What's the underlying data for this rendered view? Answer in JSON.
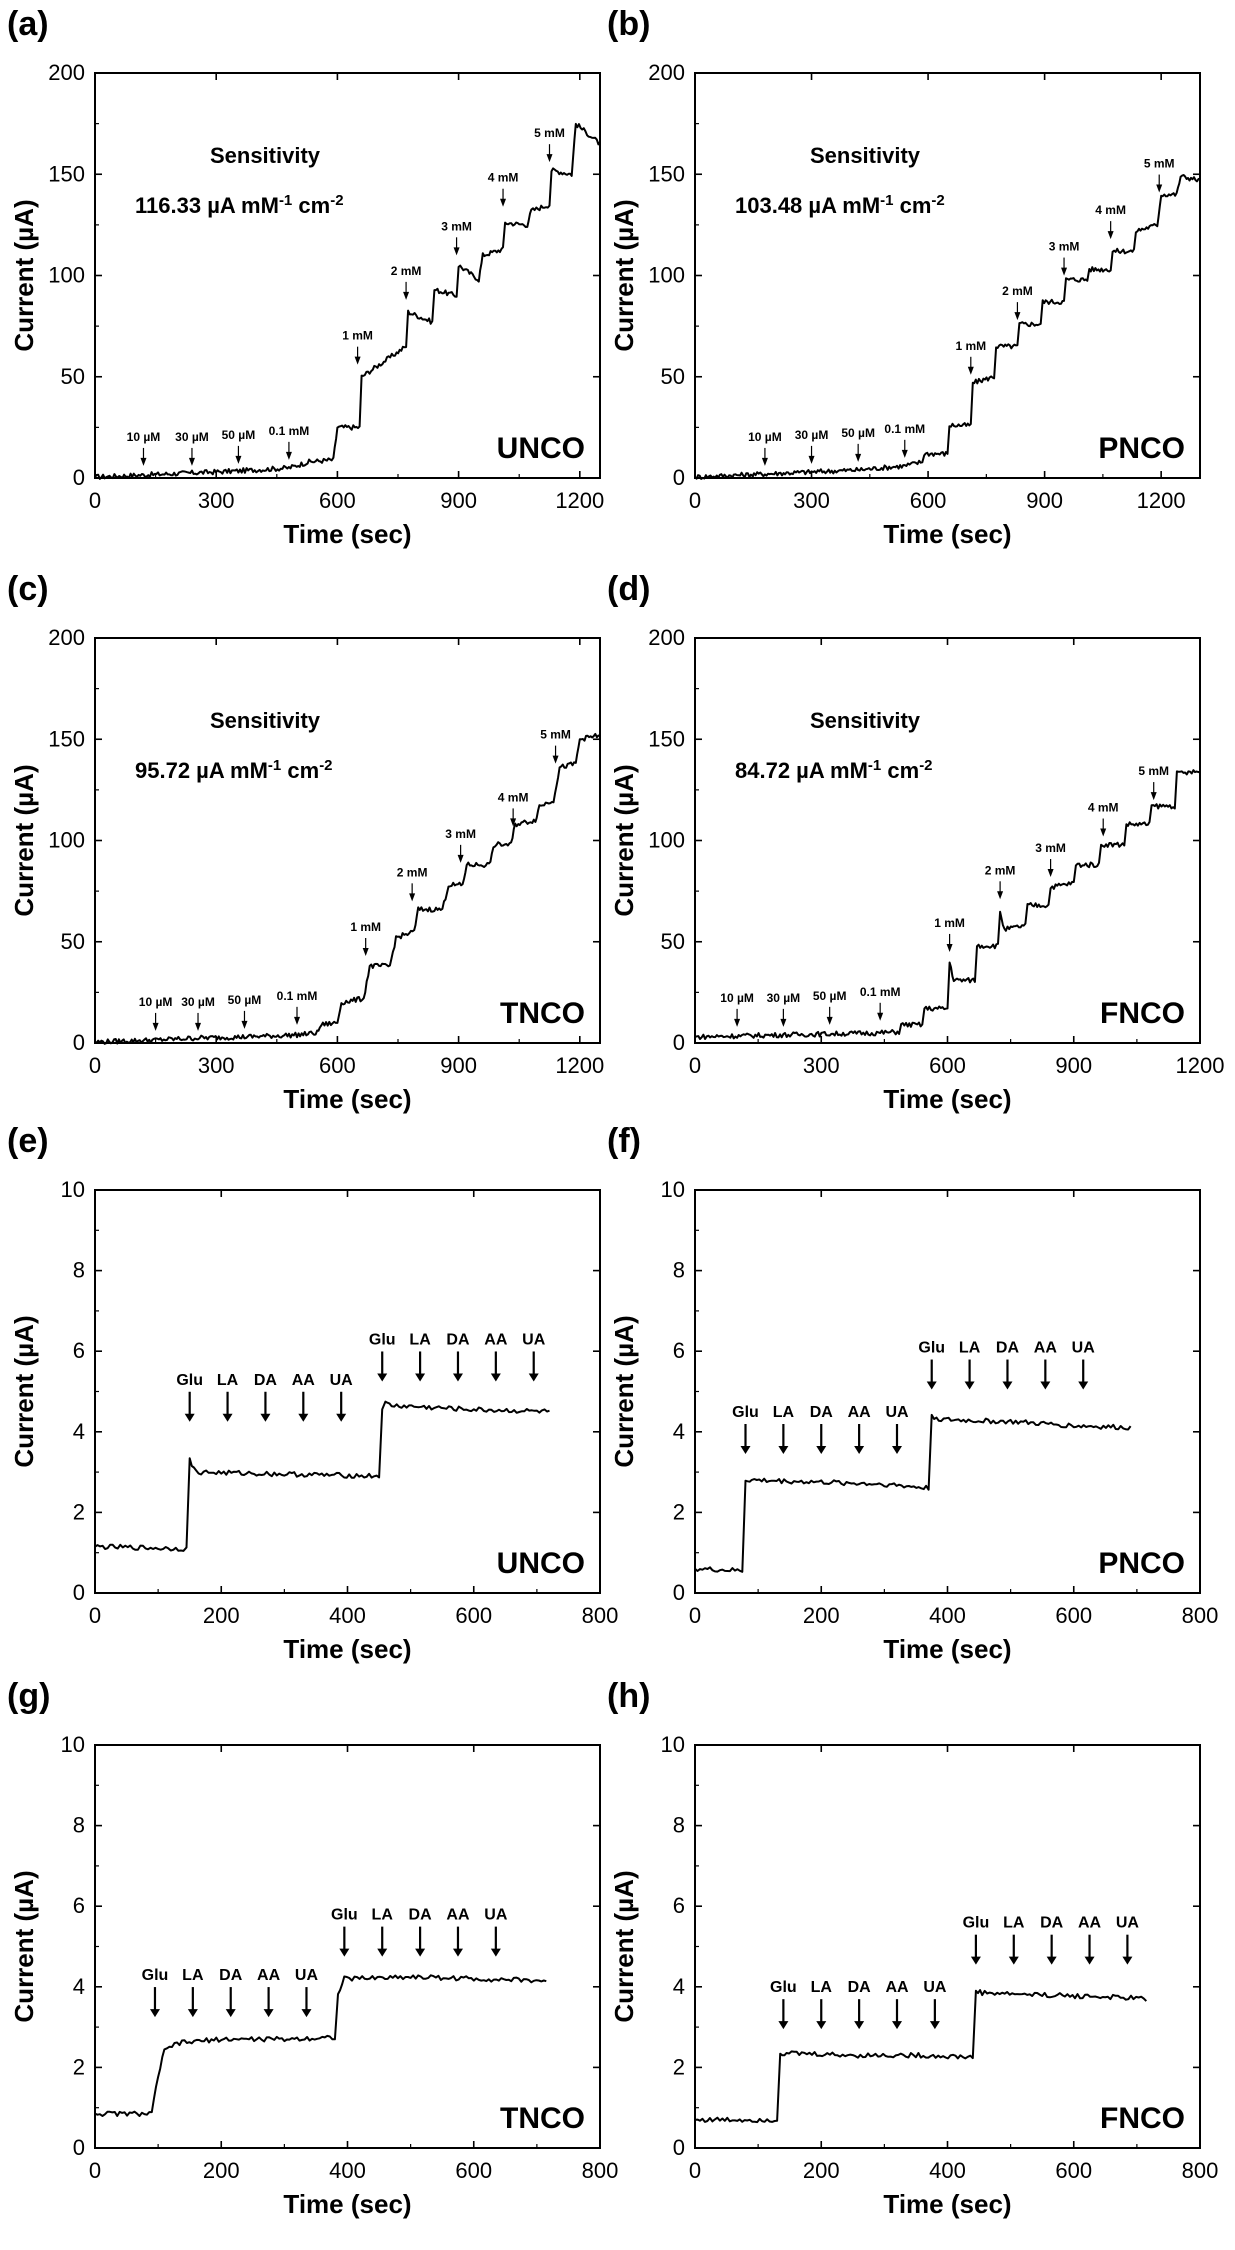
{
  "chart_data": [
    {
      "panel": "(a)",
      "type": "line",
      "material": "UNCO",
      "xlabel": "Time (sec)",
      "ylabel": "Current (µA)",
      "xlim": [
        0,
        1250
      ],
      "ylim": [
        0,
        200
      ],
      "xticks": [
        0,
        300,
        600,
        900,
        1200
      ],
      "yticks": [
        0,
        50,
        100,
        150,
        200
      ],
      "sensitivity_label": "Sensitivity",
      "sensitivity_value": "116.33 µA mM",
      "sensitivity_exp1": "-1",
      "sensitivity_unit2": " cm",
      "sensitivity_exp2": "-2",
      "annotations": [
        {
          "text": "10 µM",
          "x": 120,
          "y": 3
        },
        {
          "text": "30 µM",
          "x": 240,
          "y": 3
        },
        {
          "text": "50 µM",
          "x": 355,
          "y": 4
        },
        {
          "text": "0.1 mM",
          "x": 480,
          "y": 6
        },
        {
          "text": "1 mM",
          "x": 650,
          "y": 53
        },
        {
          "text": "2 mM",
          "x": 770,
          "y": 85
        },
        {
          "text": "3 mM",
          "x": 895,
          "y": 107
        },
        {
          "text": "4 mM",
          "x": 1010,
          "y": 131
        },
        {
          "text": "5 mM",
          "x": 1125,
          "y": 153
        }
      ],
      "series": [
        {
          "x": [
            0,
            120,
            240,
            355,
            480,
            530,
            590,
            600,
            655,
            660,
            770,
            775,
            835,
            840,
            895,
            900,
            950,
            960,
            1010,
            1015,
            1070,
            1080,
            1125,
            1130,
            1180,
            1190,
            1250
          ],
          "y": [
            0.5,
            1.5,
            2.5,
            3.5,
            5,
            8,
            9,
            25,
            25,
            50,
            65,
            82,
            77,
            93,
            90,
            105,
            98,
            110,
            113,
            126,
            125,
            132,
            135,
            152,
            150,
            175,
            165
          ]
        }
      ]
    },
    {
      "panel": "(b)",
      "type": "line",
      "material": "PNCO",
      "xlabel": "Time (sec)",
      "ylabel": "Current (µA)",
      "xlim": [
        0,
        1300
      ],
      "ylim": [
        0,
        200
      ],
      "xticks": [
        0,
        300,
        600,
        900,
        1200
      ],
      "yticks": [
        0,
        50,
        100,
        150,
        200
      ],
      "sensitivity_label": "Sensitivity",
      "sensitivity_value": "103.48 µA mM",
      "sensitivity_exp1": "-1",
      "sensitivity_unit2": " cm",
      "sensitivity_exp2": "-2",
      "annotations": [
        {
          "text": "10 µM",
          "x": 180,
          "y": 3
        },
        {
          "text": "30 µM",
          "x": 300,
          "y": 4
        },
        {
          "text": "50 µM",
          "x": 420,
          "y": 5
        },
        {
          "text": "0.1 mM",
          "x": 540,
          "y": 7
        },
        {
          "text": "1 mM",
          "x": 710,
          "y": 48
        },
        {
          "text": "2 mM",
          "x": 830,
          "y": 75
        },
        {
          "text": "3 mM",
          "x": 950,
          "y": 97
        },
        {
          "text": "4 mM",
          "x": 1070,
          "y": 115
        },
        {
          "text": "5 mM",
          "x": 1195,
          "y": 138
        }
      ],
      "series": [
        {
          "x": [
            0,
            180,
            300,
            420,
            540,
            585,
            590,
            650,
            655,
            710,
            715,
            770,
            775,
            830,
            835,
            890,
            895,
            950,
            955,
            1010,
            1015,
            1070,
            1075,
            1130,
            1135,
            1190,
            1200,
            1240,
            1250,
            1300
          ],
          "y": [
            0.5,
            2,
            3,
            4,
            6,
            8,
            12,
            12,
            26,
            26,
            47,
            50,
            65,
            65,
            76,
            76,
            87,
            87,
            98,
            98,
            103,
            103,
            112,
            112,
            122,
            125,
            140,
            140,
            149,
            147
          ]
        }
      ]
    },
    {
      "panel": "(c)",
      "type": "line",
      "material": "TNCO",
      "xlabel": "Time (sec)",
      "ylabel": "Current (µA)",
      "xlim": [
        0,
        1250
      ],
      "ylim": [
        0,
        200
      ],
      "xticks": [
        0,
        300,
        600,
        900,
        1200
      ],
      "yticks": [
        0,
        50,
        100,
        150,
        200
      ],
      "sensitivity_label": "Sensitivity",
      "sensitivity_value": "95.72 µA mM",
      "sensitivity_exp1": "-1",
      "sensitivity_unit2": " cm",
      "sensitivity_exp2": "-2",
      "annotations": [
        {
          "text": "10 µM",
          "x": 150,
          "y": 3
        },
        {
          "text": "30 µM",
          "x": 255,
          "y": 3
        },
        {
          "text": "50 µM",
          "x": 370,
          "y": 4
        },
        {
          "text": "0.1 mM",
          "x": 500,
          "y": 6
        },
        {
          "text": "1 mM",
          "x": 670,
          "y": 40
        },
        {
          "text": "2 mM",
          "x": 785,
          "y": 67
        },
        {
          "text": "3 mM",
          "x": 905,
          "y": 86
        },
        {
          "text": "4 mM",
          "x": 1035,
          "y": 104
        },
        {
          "text": "5 mM",
          "x": 1140,
          "y": 135
        }
      ],
      "series": [
        {
          "x": [
            0,
            150,
            255,
            370,
            500,
            550,
            560,
            600,
            610,
            665,
            680,
            730,
            745,
            790,
            800,
            860,
            875,
            910,
            920,
            975,
            990,
            1030,
            1040,
            1090,
            1100,
            1135,
            1150,
            1190,
            1200,
            1250
          ],
          "y": [
            0.5,
            1.5,
            2.5,
            3,
            4,
            5,
            9,
            10,
            20,
            22,
            38,
            38,
            52,
            55,
            66,
            66,
            78,
            78,
            88,
            88,
            98,
            98,
            108,
            110,
            117,
            120,
            136,
            138,
            150,
            152
          ]
        }
      ]
    },
    {
      "panel": "(d)",
      "type": "line",
      "material": "FNCO",
      "xlabel": "Time (sec)",
      "ylabel": "Current (µA)",
      "xlim": [
        0,
        1200
      ],
      "ylim": [
        0,
        200
      ],
      "xticks": [
        0,
        300,
        600,
        900,
        1200
      ],
      "yticks": [
        0,
        50,
        100,
        150,
        200
      ],
      "sensitivity_label": "Sensitivity",
      "sensitivity_value": "84.72 µA mM",
      "sensitivity_exp1": "-1",
      "sensitivity_unit2": " cm",
      "sensitivity_exp2": "-2",
      "annotations": [
        {
          "text": "10 µM",
          "x": 100,
          "y": 5
        },
        {
          "text": "30 µM",
          "x": 210,
          "y": 5
        },
        {
          "text": "50 µM",
          "x": 320,
          "y": 6
        },
        {
          "text": "0.1 mM",
          "x": 440,
          "y": 8
        },
        {
          "text": "1 mM",
          "x": 605,
          "y": 42
        },
        {
          "text": "2 mM",
          "x": 725,
          "y": 68
        },
        {
          "text": "3 mM",
          "x": 845,
          "y": 79
        },
        {
          "text": "4 mM",
          "x": 970,
          "y": 99
        },
        {
          "text": "5 mM",
          "x": 1090,
          "y": 117
        }
      ],
      "series": [
        {
          "x": [
            0,
            100,
            210,
            320,
            440,
            485,
            490,
            540,
            545,
            600,
            605,
            615,
            665,
            670,
            720,
            725,
            735,
            785,
            790,
            840,
            845,
            900,
            905,
            960,
            965,
            1020,
            1025,
            1080,
            1085,
            1140,
            1145,
            1200
          ],
          "y": [
            3,
            3.5,
            4,
            4.5,
            5,
            5.5,
            9,
            9,
            17,
            17,
            40,
            31,
            31,
            48,
            48,
            65,
            56,
            58,
            68,
            68,
            77,
            79,
            88,
            88,
            98,
            98,
            108,
            108,
            117,
            117,
            133,
            134
          ]
        }
      ]
    },
    {
      "panel": "(e)",
      "type": "line",
      "material": "UNCO",
      "xlabel": "Time (sec)",
      "ylabel": "Current (µA)",
      "xlim": [
        0,
        800
      ],
      "ylim": [
        0,
        10
      ],
      "xticks": [
        0,
        200,
        400,
        600,
        800
      ],
      "yticks": [
        0,
        2,
        4,
        6,
        8,
        10
      ],
      "annotations": [
        {
          "text": "Glu",
          "x": 150,
          "y": 4.1
        },
        {
          "text": "LA",
          "x": 210,
          "y": 4.1
        },
        {
          "text": "DA",
          "x": 270,
          "y": 4.1
        },
        {
          "text": "AA",
          "x": 330,
          "y": 4.1
        },
        {
          "text": "UA",
          "x": 390,
          "y": 4.1
        },
        {
          "text": "Glu",
          "x": 455,
          "y": 5.1
        },
        {
          "text": "LA",
          "x": 515,
          "y": 5.1
        },
        {
          "text": "DA",
          "x": 575,
          "y": 5.1
        },
        {
          "text": "AA",
          "x": 635,
          "y": 5.1
        },
        {
          "text": "UA",
          "x": 695,
          "y": 5.1
        }
      ],
      "series": [
        {
          "x": [
            0,
            140,
            145,
            150,
            160,
            300,
            450,
            455,
            460,
            470,
            600,
            720
          ],
          "y": [
            1.15,
            1.1,
            1.1,
            3.3,
            3.0,
            2.95,
            2.9,
            4.6,
            4.7,
            4.65,
            4.55,
            4.5
          ]
        }
      ]
    },
    {
      "panel": "(f)",
      "type": "line",
      "material": "PNCO",
      "xlabel": "Time (sec)",
      "ylabel": "Current (µA)",
      "xlim": [
        0,
        800
      ],
      "ylim": [
        0,
        10
      ],
      "xticks": [
        0,
        200,
        400,
        600,
        800
      ],
      "yticks": [
        0,
        2,
        4,
        6,
        8,
        10
      ],
      "annotations": [
        {
          "text": "Glu",
          "x": 80,
          "y": 3.3
        },
        {
          "text": "LA",
          "x": 140,
          "y": 3.3
        },
        {
          "text": "DA",
          "x": 200,
          "y": 3.3
        },
        {
          "text": "AA",
          "x": 260,
          "y": 3.3
        },
        {
          "text": "UA",
          "x": 320,
          "y": 3.3
        },
        {
          "text": "Glu",
          "x": 375,
          "y": 4.9
        },
        {
          "text": "LA",
          "x": 435,
          "y": 4.9
        },
        {
          "text": "DA",
          "x": 495,
          "y": 4.9
        },
        {
          "text": "AA",
          "x": 555,
          "y": 4.9
        },
        {
          "text": "UA",
          "x": 615,
          "y": 4.9
        }
      ],
      "series": [
        {
          "x": [
            0,
            75,
            80,
            90,
            200,
            300,
            370,
            375,
            390,
            500,
            600,
            690
          ],
          "y": [
            0.6,
            0.55,
            2.8,
            2.8,
            2.75,
            2.7,
            2.6,
            4.4,
            4.3,
            4.25,
            4.15,
            4.1
          ]
        }
      ]
    },
    {
      "panel": "(g)",
      "type": "line",
      "material": "TNCO",
      "xlabel": "Time (sec)",
      "ylabel": "Current (µA)",
      "xlim": [
        0,
        800
      ],
      "ylim": [
        0,
        10
      ],
      "xticks": [
        0,
        200,
        400,
        600,
        800
      ],
      "yticks": [
        0,
        2,
        4,
        6,
        8,
        10
      ],
      "annotations": [
        {
          "text": "Glu",
          "x": 95,
          "y": 3.1
        },
        {
          "text": "LA",
          "x": 155,
          "y": 3.1
        },
        {
          "text": "DA",
          "x": 215,
          "y": 3.1
        },
        {
          "text": "AA",
          "x": 275,
          "y": 3.1
        },
        {
          "text": "UA",
          "x": 335,
          "y": 3.1
        },
        {
          "text": "Glu",
          "x": 395,
          "y": 4.6
        },
        {
          "text": "LA",
          "x": 455,
          "y": 4.6
        },
        {
          "text": "DA",
          "x": 515,
          "y": 4.6
        },
        {
          "text": "AA",
          "x": 575,
          "y": 4.6
        },
        {
          "text": "UA",
          "x": 635,
          "y": 4.6
        }
      ],
      "series": [
        {
          "x": [
            0,
            90,
            100,
            110,
            130,
            200,
            300,
            380,
            385,
            395,
            500,
            600,
            715
          ],
          "y": [
            0.85,
            0.85,
            1.8,
            2.4,
            2.6,
            2.7,
            2.7,
            2.75,
            3.8,
            4.2,
            4.25,
            4.2,
            4.15
          ]
        }
      ]
    },
    {
      "panel": "(h)",
      "type": "line",
      "material": "FNCO",
      "xlabel": "Time (sec)",
      "ylabel": "Current (µA)",
      "xlim": [
        0,
        800
      ],
      "ylim": [
        0,
        10
      ],
      "xticks": [
        0,
        200,
        400,
        600,
        800
      ],
      "yticks": [
        0,
        2,
        4,
        6,
        8,
        10
      ],
      "annotations": [
        {
          "text": "Glu",
          "x": 140,
          "y": 2.8
        },
        {
          "text": "LA",
          "x": 200,
          "y": 2.8
        },
        {
          "text": "DA",
          "x": 260,
          "y": 2.8
        },
        {
          "text": "AA",
          "x": 320,
          "y": 2.8
        },
        {
          "text": "UA",
          "x": 380,
          "y": 2.8
        },
        {
          "text": "Glu",
          "x": 445,
          "y": 4.4
        },
        {
          "text": "LA",
          "x": 505,
          "y": 4.4
        },
        {
          "text": "DA",
          "x": 565,
          "y": 4.4
        },
        {
          "text": "AA",
          "x": 625,
          "y": 4.4
        },
        {
          "text": "UA",
          "x": 685,
          "y": 4.4
        }
      ],
      "series": [
        {
          "x": [
            0,
            130,
            135,
            145,
            250,
            350,
            440,
            445,
            455,
            550,
            650,
            715
          ],
          "y": [
            0.7,
            0.7,
            2.35,
            2.35,
            2.3,
            2.3,
            2.25,
            3.9,
            3.85,
            3.8,
            3.75,
            3.7
          ]
        }
      ]
    }
  ]
}
